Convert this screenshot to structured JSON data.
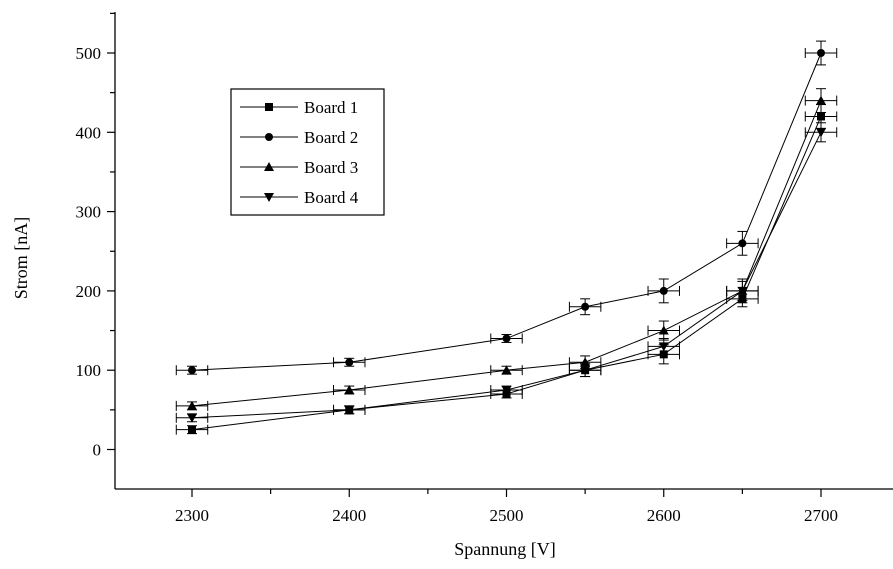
{
  "chart_data": {
    "type": "line",
    "xlabel": "Spannung [V]",
    "ylabel": "Strom [nA]",
    "xlim": [
      2250,
      2710
    ],
    "ylim": [
      -50,
      550
    ],
    "x_ticks": [
      2300,
      2400,
      2500,
      2600,
      2700
    ],
    "x_tick_labels": [
      "2300",
      "2400",
      "2500",
      "2600",
      "2700"
    ],
    "y_ticks": [
      0,
      100,
      200,
      300,
      400,
      500
    ],
    "y_tick_labels": [
      "0",
      "100",
      "200",
      "300",
      "400",
      "500"
    ],
    "grid": false,
    "legend_position": "upper-left",
    "error_bars": true,
    "series": [
      {
        "name": "Board 1",
        "marker": "square",
        "x": [
          2300,
          2400,
          2500,
          2550,
          2600,
          2650,
          2700
        ],
        "y": [
          25,
          50,
          70,
          100,
          120,
          190,
          420
        ],
        "y_err": [
          5,
          5,
          5,
          8,
          12,
          10,
          15
        ],
        "x_err": [
          10,
          10,
          10,
          10,
          10,
          10,
          10
        ]
      },
      {
        "name": "Board 2",
        "marker": "circle",
        "x": [
          2300,
          2400,
          2500,
          2550,
          2600,
          2650,
          2700
        ],
        "y": [
          100,
          110,
          140,
          180,
          200,
          260,
          500
        ],
        "y_err": [
          5,
          5,
          5,
          10,
          15,
          15,
          15
        ],
        "x_err": [
          10,
          10,
          10,
          10,
          10,
          10,
          10
        ]
      },
      {
        "name": "Board 3",
        "marker": "triangle-up",
        "x": [
          2300,
          2400,
          2500,
          2550,
          2600,
          2650,
          2700
        ],
        "y": [
          55,
          75,
          100,
          110,
          150,
          200,
          440
        ],
        "y_err": [
          5,
          5,
          5,
          8,
          12,
          15,
          15
        ],
        "x_err": [
          10,
          10,
          10,
          10,
          10,
          10,
          10
        ]
      },
      {
        "name": "Board 4",
        "marker": "triangle-down",
        "x": [
          2300,
          2400,
          2500,
          2550,
          2600,
          2650,
          2700
        ],
        "y": [
          40,
          50,
          75,
          100,
          130,
          200,
          400
        ],
        "y_err": [
          5,
          5,
          5,
          8,
          10,
          12,
          12
        ],
        "x_err": [
          10,
          10,
          10,
          10,
          10,
          10,
          10
        ]
      }
    ]
  }
}
